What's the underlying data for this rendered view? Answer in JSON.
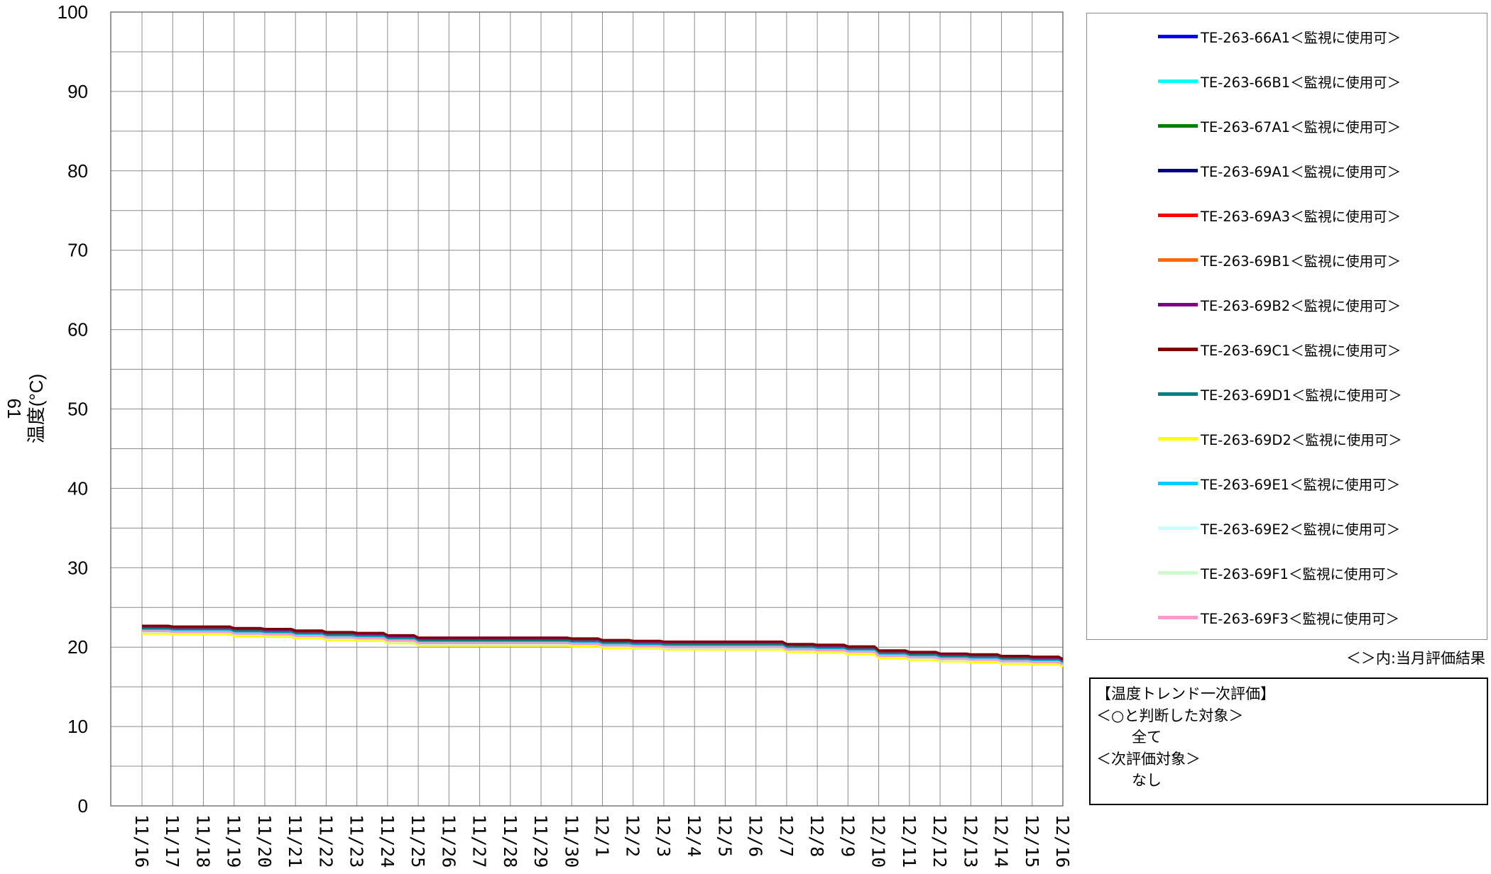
{
  "chart_data": {
    "type": "line",
    "ylabel": "温度(°C)",
    "ylabel_secondary": "61",
    "ylim": [
      0,
      100
    ],
    "y_ticks": [
      "0",
      "10",
      "20",
      "30",
      "40",
      "50",
      "60",
      "70",
      "80",
      "90",
      "100"
    ],
    "categories": [
      "11/16",
      "11/17",
      "11/18",
      "11/19",
      "11/20",
      "11/21",
      "11/22",
      "11/23",
      "11/24",
      "11/25",
      "11/26",
      "11/27",
      "11/28",
      "11/29",
      "11/30",
      "12/1",
      "12/2",
      "12/3",
      "12/4",
      "12/5",
      "12/6",
      "12/7",
      "12/8",
      "12/9",
      "12/10",
      "12/11",
      "12/12",
      "12/13",
      "12/14",
      "12/15",
      "12/16"
    ],
    "grid": true,
    "legend_position": "right",
    "series": [
      {
        "name": "TE-263-66A1＜監視に使用可＞",
        "color": "#0000ff",
        "values": [
          22.1,
          22.0,
          22.0,
          21.8,
          21.7,
          21.5,
          21.3,
          21.2,
          20.9,
          20.6,
          20.6,
          20.6,
          20.6,
          20.6,
          20.5,
          20.3,
          20.2,
          20.1,
          20.1,
          20.1,
          20.1,
          19.8,
          19.7,
          19.5,
          19.0,
          18.8,
          18.6,
          18.5,
          18.3,
          18.2,
          17.9
        ]
      },
      {
        "name": "TE-263-66B1＜監視に使用可＞",
        "color": "#00ffff",
        "values": [
          22.0,
          21.9,
          21.9,
          21.7,
          21.6,
          21.4,
          21.2,
          21.1,
          20.8,
          20.5,
          20.5,
          20.5,
          20.5,
          20.5,
          20.4,
          20.2,
          20.1,
          20.0,
          20.0,
          20.0,
          20.0,
          19.7,
          19.6,
          19.4,
          18.9,
          18.7,
          18.5,
          18.4,
          18.2,
          18.1,
          17.8
        ]
      },
      {
        "name": "TE-263-67A1＜監視に使用可＞",
        "color": "#008000",
        "values": [
          22.2,
          22.1,
          22.1,
          21.9,
          21.8,
          21.6,
          21.4,
          21.3,
          21.0,
          20.7,
          20.7,
          20.7,
          20.7,
          20.7,
          20.6,
          20.4,
          20.3,
          20.2,
          20.2,
          20.2,
          20.2,
          19.9,
          19.8,
          19.6,
          19.1,
          18.9,
          18.7,
          18.6,
          18.4,
          18.3,
          18.0
        ]
      },
      {
        "name": "TE-263-69A1＜監視に使用可＞",
        "color": "#000080",
        "values": [
          22.3,
          22.2,
          22.2,
          22.0,
          21.9,
          21.7,
          21.5,
          21.4,
          21.1,
          20.8,
          20.8,
          20.8,
          20.8,
          20.8,
          20.7,
          20.5,
          20.4,
          20.3,
          20.3,
          20.3,
          20.3,
          20.0,
          19.9,
          19.7,
          19.2,
          19.0,
          18.8,
          18.7,
          18.5,
          18.4,
          18.1
        ]
      },
      {
        "name": "TE-263-69A3＜監視に使用可＞",
        "color": "#ff0000",
        "values": [
          22.4,
          22.3,
          22.3,
          22.1,
          22.0,
          21.8,
          21.6,
          21.5,
          21.2,
          20.9,
          20.9,
          20.9,
          20.9,
          20.9,
          20.8,
          20.6,
          20.5,
          20.4,
          20.4,
          20.4,
          20.4,
          20.1,
          20.0,
          19.8,
          19.3,
          19.1,
          18.9,
          18.8,
          18.6,
          18.5,
          18.2
        ]
      },
      {
        "name": "TE-263-69B1＜監視に使用可＞",
        "color": "#ff6600",
        "values": [
          22.2,
          22.1,
          22.1,
          21.9,
          21.8,
          21.6,
          21.4,
          21.3,
          21.0,
          20.7,
          20.7,
          20.7,
          20.7,
          20.7,
          20.6,
          20.4,
          20.3,
          20.2,
          20.2,
          20.2,
          20.2,
          19.9,
          19.8,
          19.6,
          19.1,
          18.9,
          18.7,
          18.6,
          18.4,
          18.3,
          18.0
        ]
      },
      {
        "name": "TE-263-69B2＜監視に使用可＞",
        "color": "#800080",
        "values": [
          22.6,
          22.5,
          22.5,
          22.3,
          22.2,
          22.0,
          21.8,
          21.7,
          21.4,
          21.1,
          21.1,
          21.1,
          21.1,
          21.1,
          21.0,
          20.8,
          20.7,
          20.6,
          20.6,
          20.6,
          20.6,
          20.3,
          20.2,
          20.0,
          19.5,
          19.3,
          19.1,
          19.0,
          18.8,
          18.7,
          18.4
        ]
      },
      {
        "name": "TE-263-69C1＜監視に使用可＞",
        "color": "#800000",
        "values": [
          22.7,
          22.6,
          22.6,
          22.4,
          22.3,
          22.1,
          21.9,
          21.8,
          21.5,
          21.2,
          21.2,
          21.2,
          21.2,
          21.2,
          21.1,
          20.9,
          20.8,
          20.7,
          20.7,
          20.7,
          20.7,
          20.4,
          20.3,
          20.1,
          19.6,
          19.4,
          19.2,
          19.1,
          18.9,
          18.8,
          18.5
        ]
      },
      {
        "name": "TE-263-69D1＜監視に使用可＞",
        "color": "#008080",
        "values": [
          22.3,
          22.2,
          22.2,
          22.0,
          21.9,
          21.7,
          21.5,
          21.4,
          21.1,
          20.8,
          20.8,
          20.8,
          20.8,
          20.8,
          20.7,
          20.5,
          20.4,
          20.3,
          20.3,
          20.3,
          20.3,
          20.0,
          19.9,
          19.7,
          19.2,
          19.0,
          18.8,
          18.7,
          18.5,
          18.4,
          18.1
        ]
      },
      {
        "name": "TE-263-69D2＜監視に使用可＞",
        "color": "#ffff00",
        "values": [
          21.7,
          21.6,
          21.6,
          21.4,
          21.3,
          21.1,
          20.9,
          20.8,
          20.5,
          20.2,
          20.2,
          20.2,
          20.2,
          20.2,
          20.1,
          19.9,
          19.8,
          19.7,
          19.7,
          19.7,
          19.7,
          19.4,
          19.3,
          19.1,
          18.6,
          18.4,
          18.2,
          18.1,
          17.9,
          17.8,
          17.5
        ]
      },
      {
        "name": "TE-263-69E1＜監視に使用可＞",
        "color": "#00ccff",
        "values": [
          22.1,
          22.0,
          22.0,
          21.8,
          21.7,
          21.5,
          21.3,
          21.2,
          20.9,
          20.6,
          20.6,
          20.6,
          20.6,
          20.6,
          20.5,
          20.3,
          20.2,
          20.1,
          20.1,
          20.1,
          20.1,
          19.8,
          19.7,
          19.5,
          19.0,
          18.8,
          18.6,
          18.5,
          18.3,
          18.2,
          17.9
        ]
      },
      {
        "name": "TE-263-69E2＜監視に使用可＞",
        "color": "#ccffff",
        "values": [
          21.9,
          21.8,
          21.8,
          21.6,
          21.5,
          21.3,
          21.1,
          21.0,
          20.7,
          20.4,
          20.4,
          20.4,
          20.4,
          20.4,
          20.3,
          20.1,
          20.0,
          19.9,
          19.9,
          19.9,
          19.9,
          19.6,
          19.5,
          19.3,
          18.8,
          18.6,
          18.4,
          18.3,
          18.1,
          18.0,
          17.7
        ]
      },
      {
        "name": "TE-263-69F1＜監視に使用可＞",
        "color": "#ccffcc",
        "values": [
          21.9,
          21.8,
          21.8,
          21.6,
          21.5,
          21.3,
          21.1,
          21.0,
          20.7,
          20.4,
          20.4,
          20.4,
          20.4,
          20.4,
          20.3,
          20.1,
          20.0,
          19.9,
          19.9,
          19.9,
          19.9,
          19.6,
          19.5,
          19.3,
          18.8,
          18.6,
          18.4,
          18.3,
          18.1,
          18.0,
          17.7
        ]
      },
      {
        "name": "TE-263-69F3＜監視に使用可＞",
        "color": "#ff99cc",
        "values": [
          22.0,
          21.9,
          21.9,
          21.7,
          21.6,
          21.4,
          21.2,
          21.1,
          20.8,
          20.5,
          20.5,
          20.5,
          20.5,
          20.5,
          20.4,
          20.2,
          20.1,
          20.0,
          20.0,
          20.0,
          20.0,
          19.7,
          19.6,
          19.4,
          18.9,
          18.7,
          18.5,
          18.4,
          18.2,
          18.1,
          17.8
        ]
      }
    ]
  },
  "legend_note": "＜＞内:当月評価結果",
  "evaluation": {
    "title": "【温度トレンド一次評価】",
    "ok_header": "＜○と判断した対象＞",
    "ok_value": "全て",
    "next_header": "＜次評価対象＞",
    "next_value": "なし"
  }
}
